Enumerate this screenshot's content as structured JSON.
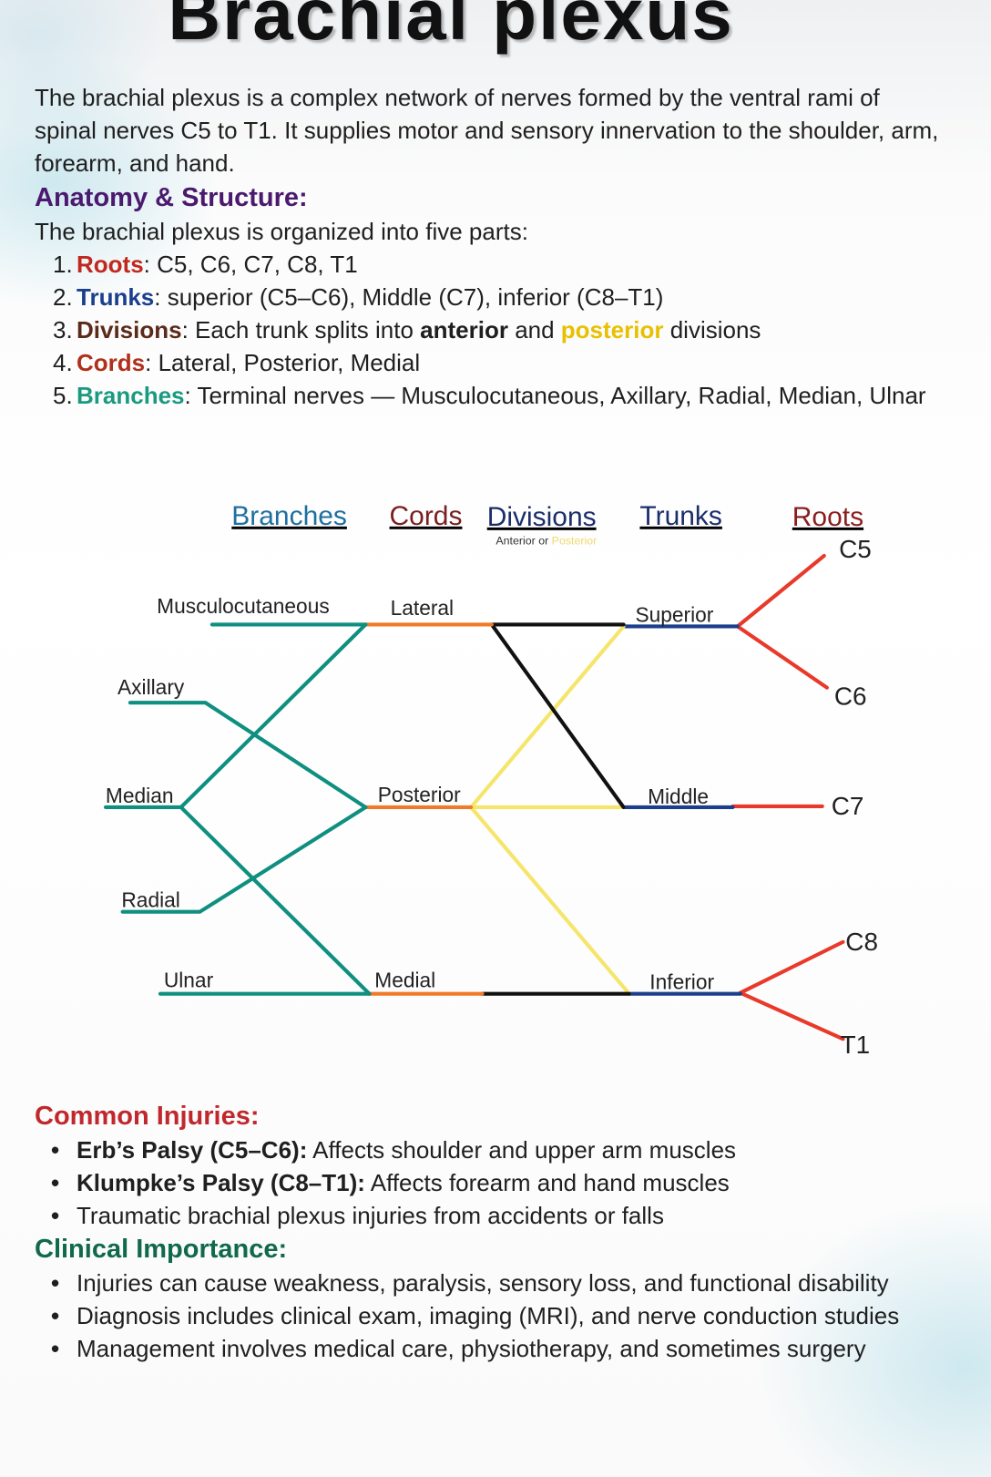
{
  "title": "Brachial plexus",
  "intro": "The brachial plexus is a complex network of nerves formed by the ventral rami of spinal nerves C5 to T1. It supplies motor and sensory innervation to the shoulder, arm, forearm, and hand.",
  "anatomy": {
    "heading": "Anatomy & Structure:",
    "lead": "The brachial plexus is organized into five parts:",
    "items": [
      {
        "number": "1.",
        "term": "Roots",
        "parts": [
          ": C5, C6, C7, C8, T1"
        ]
      },
      {
        "number": "2.",
        "term": "Trunks",
        "parts": [
          ": superior (C5–C6), Middle (C7), inferior (C8–T1)"
        ]
      },
      {
        "number": "3.",
        "term": "Divisions",
        "parts": [
          ": Each trunk splits into ",
          "anterior",
          " and ",
          "posterior",
          " divisions"
        ]
      },
      {
        "number": "4.",
        "term": "Cords",
        "parts": [
          ": Lateral, Posterior, Medial"
        ]
      },
      {
        "number": "5.",
        "term": "Branches",
        "parts": [
          ": Terminal nerves — Musculocutaneous, Axillary, Radial, Median, Ulnar"
        ]
      }
    ]
  },
  "diagram": {
    "headers": [
      "Branches",
      "Cords",
      "Divisions",
      "Trunks",
      "Roots"
    ],
    "divisions_note": [
      "Anterior or",
      "Posterior"
    ],
    "branches": [
      "Musculocutaneous",
      "Axillary",
      "Median",
      "Radial",
      "Ulnar"
    ],
    "cords": [
      "Lateral",
      "Posterior",
      "Medial"
    ],
    "trunks": [
      "Superior",
      "Middle",
      "Inferior"
    ],
    "roots": [
      "C5",
      "C6",
      "C7",
      "C8",
      "T1"
    ]
  },
  "injuries": {
    "heading": "Common Injuries:",
    "items": [
      {
        "bold": "Erb’s Palsy (C5–C6):",
        "text": " Affects shoulder and upper arm muscles"
      },
      {
        "bold": "Klumpke’s Palsy (C8–T1):",
        "text": " Affects forearm and hand muscles"
      },
      {
        "text": "Traumatic brachial plexus injuries from accidents or falls"
      }
    ]
  },
  "clinical": {
    "heading": "Clinical Importance:",
    "items": [
      "Injuries can cause weakness, paralysis, sensory loss, and functional disability",
      "Diagnosis includes clinical exam, imaging (MRI), and nerve conduction studies",
      "Management involves medical care, physiotherapy, and sometimes surgery"
    ]
  }
}
